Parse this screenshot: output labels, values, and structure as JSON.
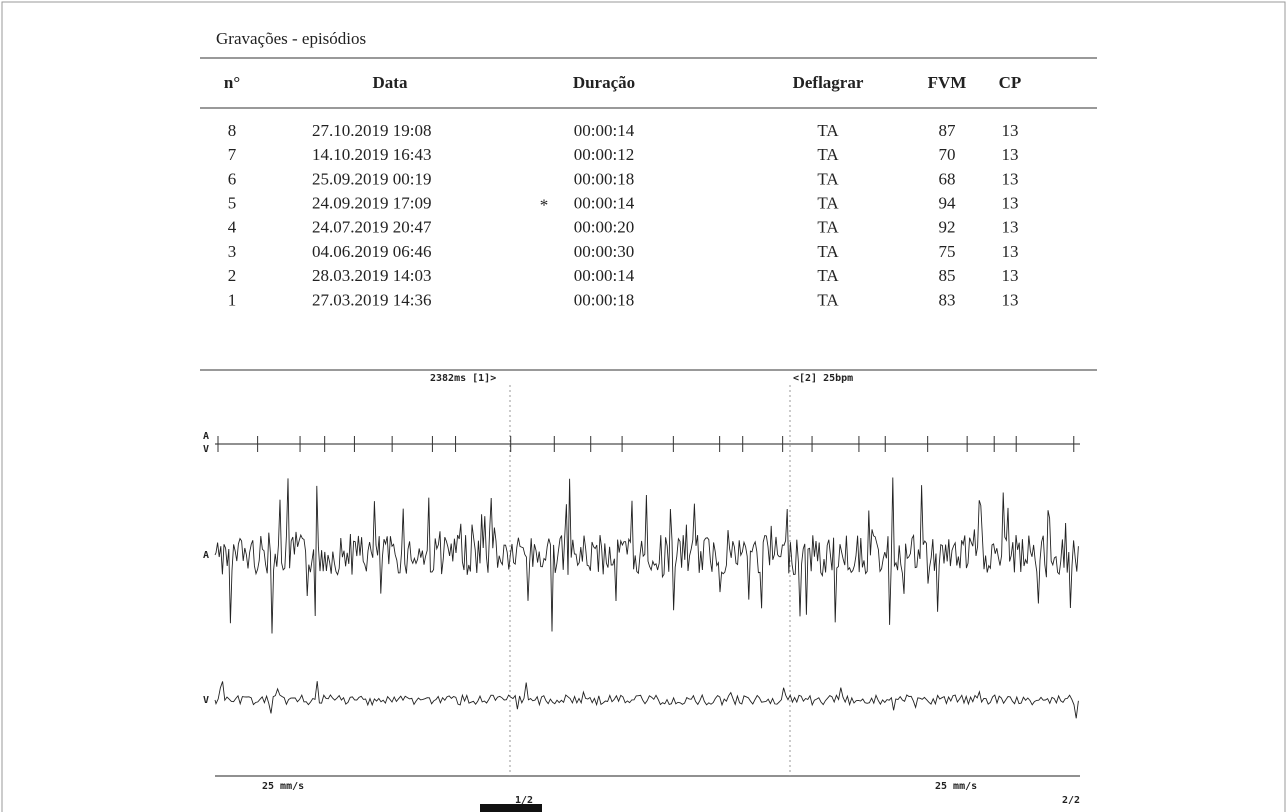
{
  "table": {
    "title": "Gravações - episódios",
    "headers": [
      "n°",
      "Data",
      "Duração",
      "Deflagrar",
      "FVM",
      "CP"
    ],
    "rows": [
      {
        "cells": [
          8,
          "27.10.2019  19:08",
          "00:00:14",
          "TA",
          87,
          13
        ]
      },
      {
        "cells": [
          7,
          "14.10.2019  16:43",
          "00:00:12",
          "TA",
          70,
          13
        ]
      },
      {
        "cells": [
          6,
          "25.09.2019  00:19",
          "00:00:18",
          "TA",
          68,
          13
        ]
      },
      {
        "cells": [
          5,
          "24.09.2019  17:09",
          "00:00:14",
          "TA",
          94,
          13
        ],
        "mark": "*"
      },
      {
        "cells": [
          4,
          "24.07.2019  20:47",
          "00:00:20",
          "TA",
          92,
          13
        ]
      },
      {
        "cells": [
          3,
          "04.06.2019  06:46",
          "00:00:30",
          "TA",
          75,
          13
        ]
      },
      {
        "cells": [
          2,
          "28.03.2019  14:03",
          "00:00:14",
          "TA",
          85,
          13
        ]
      },
      {
        "cells": [
          1,
          "27.03.2019  14:36",
          "00:00:18",
          "TA",
          83,
          13
        ]
      }
    ]
  },
  "ecg": {
    "interval": "2382ms [1]>",
    "rate": "<[2] 25bpm",
    "marker_a": "A",
    "marker_v": "V",
    "channel_a": "A",
    "channel_v": "V",
    "speed_left": "25 mm/s",
    "speed_right": "25 mm/s",
    "page_left": "1/2",
    "page_right": "2/2"
  }
}
